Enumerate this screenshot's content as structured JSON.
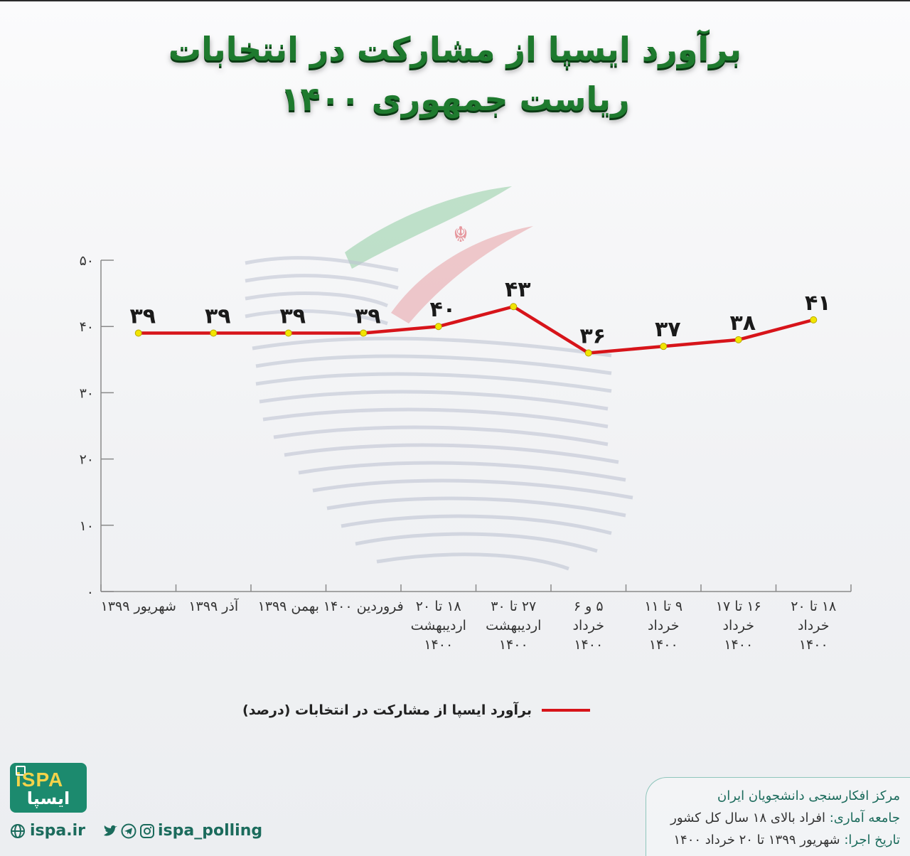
{
  "title": {
    "line1": "برآورد ایسپا از مشارکت در انتخابات",
    "line2": "ریاست جمهوری ۱۴۰۰"
  },
  "colors": {
    "title": "#1e7a2e",
    "series": "#d7141a",
    "marker": "#f2e500",
    "brand": "#1b6b5c"
  },
  "chart_data": {
    "type": "line",
    "ylim": [
      0,
      50
    ],
    "y_ticks": [
      "۰",
      "۱۰",
      "۲۰",
      "۳۰",
      "۴۰",
      "۵۰"
    ],
    "y_tick_values": [
      0,
      10,
      20,
      30,
      40,
      50
    ],
    "categories": [
      [
        "شهریور ۱۳۹۹"
      ],
      [
        "آذر ۱۳۹۹"
      ],
      [
        "بهمن ۱۳۹۹"
      ],
      [
        "فروردین ۱۴۰۰"
      ],
      [
        "۱۸ تا ۲۰",
        "اردیبهشت",
        "۱۴۰۰"
      ],
      [
        "۲۷ تا ۳۰",
        "اردیبهشت",
        "۱۴۰۰"
      ],
      [
        "۵ و ۶",
        "خرداد",
        "۱۴۰۰"
      ],
      [
        "۹ تا ۱۱",
        "خرداد",
        "۱۴۰۰"
      ],
      [
        "۱۶ تا ۱۷",
        "خرداد",
        "۱۴۰۰"
      ],
      [
        "۱۸ تا ۲۰",
        "خرداد",
        "۱۴۰۰"
      ]
    ],
    "series": [
      {
        "name": "برآورد ایسپا از مشارکت در انتخابات  (درصد)",
        "values": [
          39,
          39,
          39,
          39,
          40,
          43,
          36,
          37,
          38,
          41
        ],
        "labels": [
          "۳۹",
          "۳۹",
          "۳۹",
          "۳۹",
          "۴۰",
          "۴۳",
          "۳۶",
          "۳۷",
          "۳۸",
          "۴۱"
        ]
      }
    ],
    "grid": false,
    "legend_position": "bottom"
  },
  "footer": {
    "logo_en": "iSPA",
    "logo_fa": "ایسپا",
    "website": "ispa.ir",
    "social_handle": "ispa_polling",
    "org": "مرکز افکارسنجی دانشجویان ایران",
    "population_key": "جامعه آماری:",
    "population_val": " افراد بالای ۱۸ سال کل کشور",
    "date_key": "تاریخ اجرا:",
    "date_val": " شهریور ۱۳۹۹ تا ۲۰ خرداد ۱۴۰۰"
  }
}
